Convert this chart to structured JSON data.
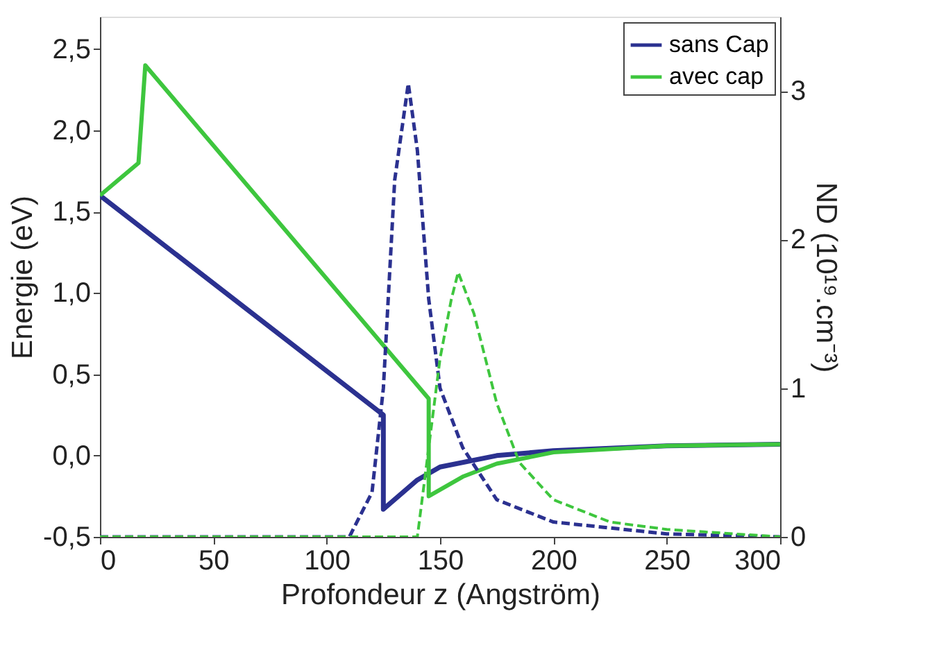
{
  "chart_data": {
    "type": "line",
    "xlabel": "Profondeur z (Angström)",
    "ylabel": "Energie (eV)",
    "y2label": "ND (10¹⁹.cm⁻³)",
    "xlim": [
      0,
      300
    ],
    "xticks": [
      0,
      50,
      100,
      150,
      200,
      250,
      300
    ],
    "ylim": [
      -0.5,
      2.7
    ],
    "yticks": [
      {
        "value": -0.5,
        "label": "-0,5"
      },
      {
        "value": 0,
        "label": "0,0"
      },
      {
        "value": 0.5,
        "label": "0,5"
      },
      {
        "value": 1,
        "label": "1,0"
      },
      {
        "value": 1.5,
        "label": "1,5"
      },
      {
        "value": 2,
        "label": "2,0"
      },
      {
        "value": 2.5,
        "label": "2,5"
      }
    ],
    "y2lim": [
      0,
      3.5
    ],
    "y2ticks": [
      0,
      1,
      2,
      3
    ],
    "legend": "top right",
    "grid": false,
    "series": [
      {
        "name": "sans Cap",
        "color": "#2b3190",
        "line_style": "solid",
        "x": [
          0,
          125,
          125,
          140,
          150,
          175,
          200,
          250,
          300
        ],
        "values": [
          1.6,
          0.25,
          -0.33,
          -0.15,
          -0.07,
          0.0,
          0.03,
          0.06,
          0.07
        ]
      },
      {
        "name": "avec cap",
        "color": "#3ec63e",
        "line_style": "solid",
        "x": [
          0,
          17,
          20,
          145,
          145,
          160,
          175,
          200,
          250,
          300
        ],
        "values": [
          1.6,
          1.8,
          2.4,
          0.35,
          -0.25,
          -0.13,
          -0.05,
          0.02,
          0.06,
          0.07
        ]
      },
      {
        "color": "#2b3190",
        "line_style": "dashed",
        "axis": "y2",
        "x": [
          0,
          110,
          120,
          125,
          130,
          136,
          140,
          145,
          150,
          160,
          175,
          200,
          250,
          300
        ],
        "values": [
          0,
          0,
          0.3,
          1.0,
          2.4,
          3.05,
          2.6,
          1.6,
          1.0,
          0.6,
          0.25,
          0.1,
          0.02,
          0
        ]
      },
      {
        "color": "#3ec63e",
        "line_style": "dashed",
        "axis": "y2",
        "x": [
          0,
          140,
          145,
          150,
          155,
          158,
          165,
          175,
          185,
          200,
          225,
          250,
          300
        ],
        "values": [
          0,
          0,
          0.6,
          1.2,
          1.6,
          1.78,
          1.5,
          0.9,
          0.5,
          0.25,
          0.1,
          0.05,
          0
        ]
      }
    ]
  }
}
